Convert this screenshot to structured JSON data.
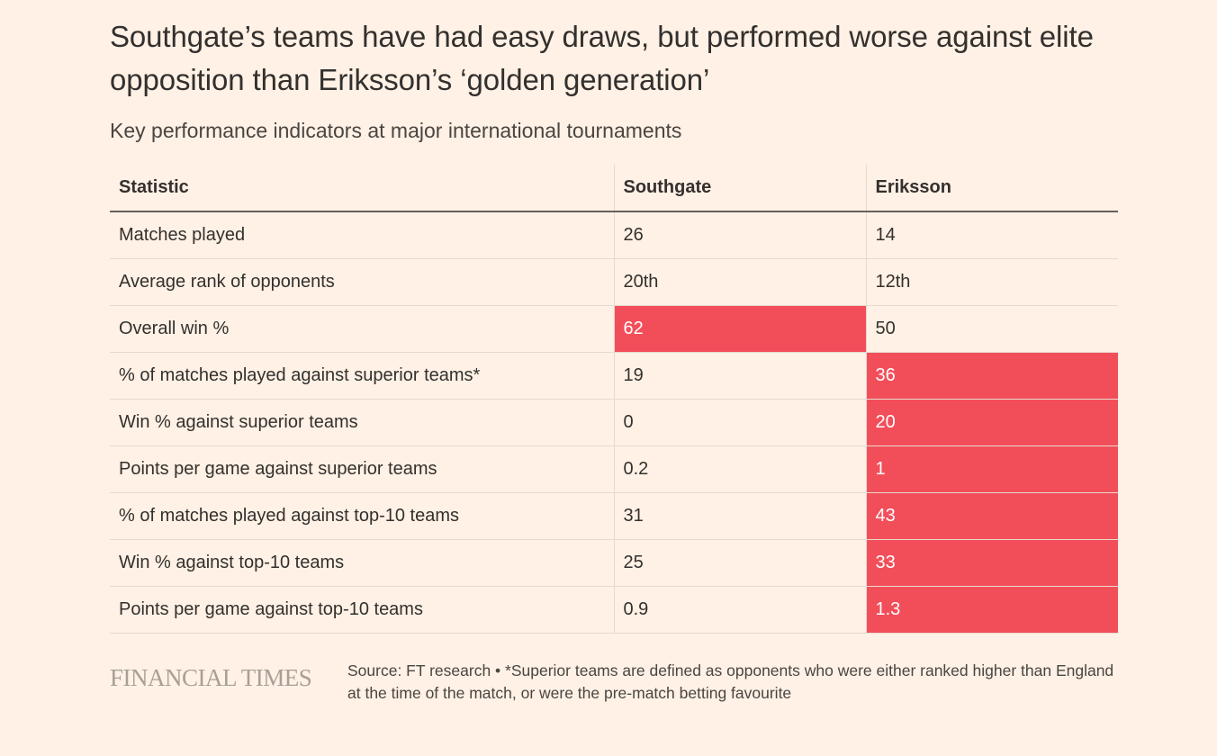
{
  "title": "Southgate’s teams have had easy draws, but performed worse against elite opposition than Eriksson’s ‘golden generation’",
  "subtitle": "Key performance indicators at major international tournaments",
  "highlight_color": "#F24E5A",
  "chart_data": {
    "type": "table",
    "columns": [
      "Statistic",
      "Southgate",
      "Eriksson"
    ],
    "rows": [
      {
        "statistic": "Matches played",
        "southgate": "26",
        "eriksson": "14",
        "highlight": null
      },
      {
        "statistic": "Average rank of opponents",
        "southgate": "20th",
        "eriksson": "12th",
        "highlight": null
      },
      {
        "statistic": "Overall win %",
        "southgate": "62",
        "eriksson": "50",
        "highlight": "southgate"
      },
      {
        "statistic": "% of matches played against superior teams*",
        "southgate": "19",
        "eriksson": "36",
        "highlight": "eriksson"
      },
      {
        "statistic": "Win % against superior teams",
        "southgate": "0",
        "eriksson": "20",
        "highlight": "eriksson"
      },
      {
        "statistic": "Points per game against superior teams",
        "southgate": "0.2",
        "eriksson": "1",
        "highlight": "eriksson"
      },
      {
        "statistic": "% of matches played against top-10 teams",
        "southgate": "31",
        "eriksson": "43",
        "highlight": "eriksson"
      },
      {
        "statistic": "Win % against top-10 teams",
        "southgate": "25",
        "eriksson": "33",
        "highlight": "eriksson"
      },
      {
        "statistic": "Points per game against top-10 teams",
        "southgate": "0.9",
        "eriksson": "1.3",
        "highlight": "eriksson"
      }
    ]
  },
  "footer": {
    "logo": "FINANCIAL TIMES",
    "source": "Source: FT research • *Superior teams are defined as opponents who were either ranked higher than England at the time of the match, or were the pre-match betting favourite"
  }
}
